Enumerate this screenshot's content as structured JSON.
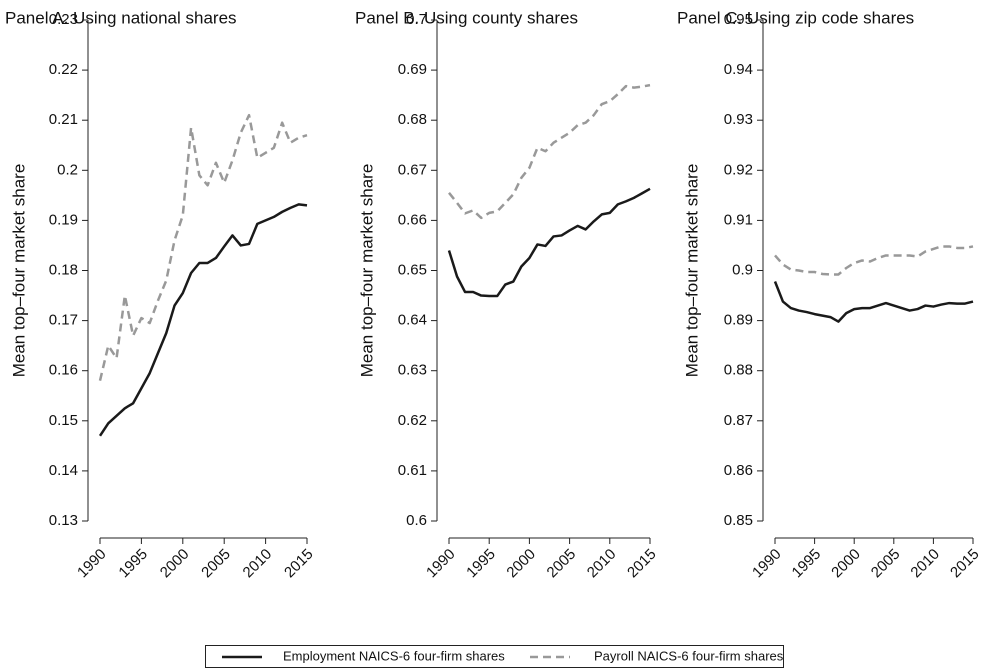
{
  "chart_data": [
    {
      "type": "line",
      "title": "Panel A. Using national shares",
      "ylabel": "Mean top–four market share",
      "x": [
        1990,
        1991,
        1992,
        1993,
        1994,
        1995,
        1996,
        1997,
        1998,
        1999,
        2000,
        2001,
        2002,
        2003,
        2004,
        2005,
        2006,
        2007,
        2008,
        2009,
        2010,
        2011,
        2012,
        2013,
        2014,
        2015
      ],
      "xlim": [
        1990,
        2015
      ],
      "xticks": [
        1990,
        1995,
        2000,
        2005,
        2010,
        2015
      ],
      "ylim": [
        0.13,
        0.23
      ],
      "yticks": [
        0.13,
        0.14,
        0.15,
        0.16,
        0.17,
        0.18,
        0.19,
        0.2,
        0.21,
        0.22,
        0.23
      ],
      "series": [
        {
          "name": "Employment NAICS-6 four-firm shares",
          "color": "#1a1a1a",
          "dash": false,
          "values": [
            0.147,
            0.1495,
            0.151,
            0.1525,
            0.1535,
            0.1565,
            0.1595,
            0.1635,
            0.1675,
            0.173,
            0.1755,
            0.1795,
            0.1815,
            0.1815,
            0.1825,
            0.1848,
            0.187,
            0.185,
            0.1853,
            0.1893,
            0.19,
            0.1907,
            0.1917,
            0.1925,
            0.1932,
            0.193
          ]
        },
        {
          "name": "Payroll NAICS-6 four-firm shares",
          "color": "#999999",
          "dash": true,
          "values": [
            0.158,
            0.165,
            0.1625,
            0.175,
            0.167,
            0.1705,
            0.1695,
            0.174,
            0.178,
            0.186,
            0.191,
            0.2085,
            0.199,
            0.197,
            0.2015,
            0.1975,
            0.202,
            0.2075,
            0.211,
            0.2025,
            0.2035,
            0.2045,
            0.2095,
            0.2055,
            0.2065,
            0.207
          ]
        }
      ]
    },
    {
      "type": "line",
      "title": "Panel B. Using county shares",
      "ylabel": "Mean top–four market share",
      "x": [
        1990,
        1991,
        1992,
        1993,
        1994,
        1995,
        1996,
        1997,
        1998,
        1999,
        2000,
        2001,
        2002,
        2003,
        2004,
        2005,
        2006,
        2007,
        2008,
        2009,
        2010,
        2011,
        2012,
        2013,
        2014,
        2015
      ],
      "xlim": [
        1990,
        2015
      ],
      "xticks": [
        1990,
        1995,
        2000,
        2005,
        2010,
        2015
      ],
      "ylim": [
        0.6,
        0.7
      ],
      "yticks": [
        0.6,
        0.61,
        0.62,
        0.63,
        0.64,
        0.65,
        0.66,
        0.67,
        0.68,
        0.69,
        0.7
      ],
      "series": [
        {
          "color": "#1a1a1a",
          "dash": false,
          "values": [
            0.654,
            0.6488,
            0.6457,
            0.6457,
            0.645,
            0.6449,
            0.6449,
            0.6472,
            0.6478,
            0.6508,
            0.6525,
            0.6552,
            0.6549,
            0.6568,
            0.657,
            0.658,
            0.6589,
            0.6582,
            0.6598,
            0.6612,
            0.6615,
            0.6632,
            0.6638,
            0.6645,
            0.6654,
            0.6663
          ]
        },
        {
          "color": "#999999",
          "dash": true,
          "values": [
            0.6655,
            0.6635,
            0.6614,
            0.662,
            0.6605,
            0.6615,
            0.6618,
            0.6635,
            0.6652,
            0.6685,
            0.6705,
            0.6745,
            0.6738,
            0.6755,
            0.6765,
            0.6775,
            0.679,
            0.6795,
            0.681,
            0.6832,
            0.6838,
            0.6852,
            0.6868,
            0.6865,
            0.6867,
            0.687
          ]
        }
      ]
    },
    {
      "type": "line",
      "title": "Panel C. Using zip code shares",
      "ylabel": "Mean top–four market share",
      "x": [
        1990,
        1991,
        1992,
        1993,
        1994,
        1995,
        1996,
        1997,
        1998,
        1999,
        2000,
        2001,
        2002,
        2003,
        2004,
        2005,
        2006,
        2007,
        2008,
        2009,
        2010,
        2011,
        2012,
        2013,
        2014,
        2015
      ],
      "xlim": [
        1990,
        2015
      ],
      "xticks": [
        1990,
        1995,
        2000,
        2005,
        2010,
        2015
      ],
      "ylim": [
        0.85,
        0.95
      ],
      "yticks": [
        0.85,
        0.86,
        0.87,
        0.88,
        0.89,
        0.9,
        0.91,
        0.92,
        0.93,
        0.94,
        0.95
      ],
      "series": [
        {
          "color": "#1a1a1a",
          "dash": false,
          "values": [
            0.8978,
            0.8938,
            0.8925,
            0.892,
            0.8917,
            0.8913,
            0.891,
            0.8907,
            0.8898,
            0.8915,
            0.8923,
            0.8925,
            0.8925,
            0.893,
            0.8935,
            0.893,
            0.8925,
            0.892,
            0.8923,
            0.893,
            0.8928,
            0.8932,
            0.8935,
            0.8934,
            0.8934,
            0.8938
          ]
        },
        {
          "color": "#999999",
          "dash": true,
          "values": [
            0.903,
            0.9012,
            0.9002,
            0.9,
            0.8997,
            0.8997,
            0.8993,
            0.8992,
            0.8992,
            0.9005,
            0.9015,
            0.902,
            0.9018,
            0.9025,
            0.903,
            0.903,
            0.903,
            0.903,
            0.9028,
            0.9038,
            0.9043,
            0.9048,
            0.9048,
            0.9045,
            0.9045,
            0.9048
          ]
        }
      ]
    }
  ]
}
